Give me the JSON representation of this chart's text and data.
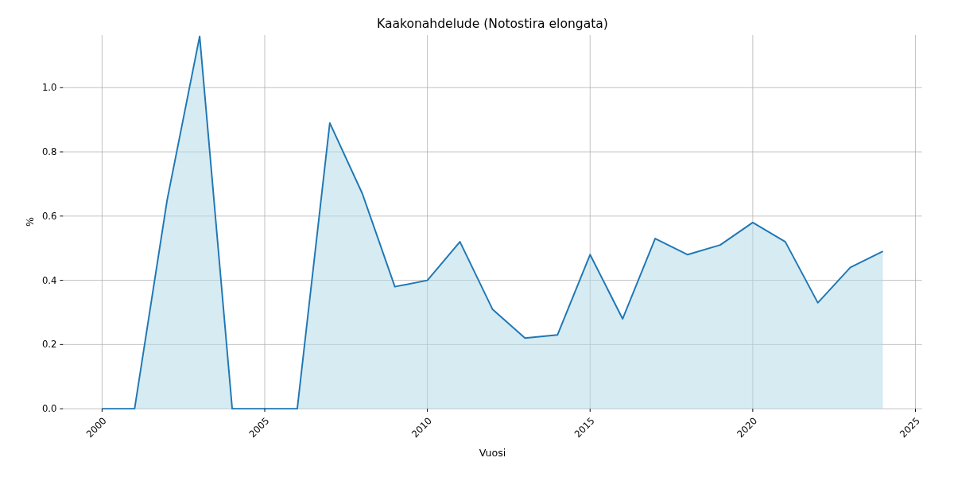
{
  "chart_data": {
    "type": "area",
    "title": "Kaakonahdelude (Notostira elongata)",
    "xlabel": "Vuosi",
    "ylabel": "%",
    "x": [
      2000,
      2001,
      2002,
      2003,
      2004,
      2005,
      2006,
      2007,
      2008,
      2009,
      2010,
      2011,
      2012,
      2013,
      2014,
      2015,
      2016,
      2017,
      2018,
      2019,
      2020,
      2021,
      2022,
      2023,
      2024
    ],
    "series": [
      {
        "color": "#1f77b4",
        "values": [
          0,
          0,
          0.65,
          1.16,
          0,
          0,
          0,
          0.89,
          0.67,
          0.38,
          0.4,
          0.52,
          0.31,
          0.22,
          0.23,
          0.48,
          0.28,
          0.53,
          0.48,
          0.51,
          0.58,
          0.52,
          0.33,
          0.44,
          0.49
        ]
      }
    ],
    "xlim": [
      1998.8,
      2025.2
    ],
    "xticks": [
      2000,
      2005,
      2010,
      2015,
      2020,
      2025
    ],
    "ylim": [
      0,
      1.164
    ],
    "yticks": [
      {
        "value": 0,
        "label": "0.0"
      },
      {
        "value": 0.2,
        "label": "0.2"
      },
      {
        "value": 0.4,
        "label": "0.4"
      },
      {
        "value": 0.6,
        "label": "0.6"
      },
      {
        "value": 0.8,
        "label": "0.8"
      },
      {
        "value": 1,
        "label": "1.0"
      }
    ],
    "grid": true
  }
}
